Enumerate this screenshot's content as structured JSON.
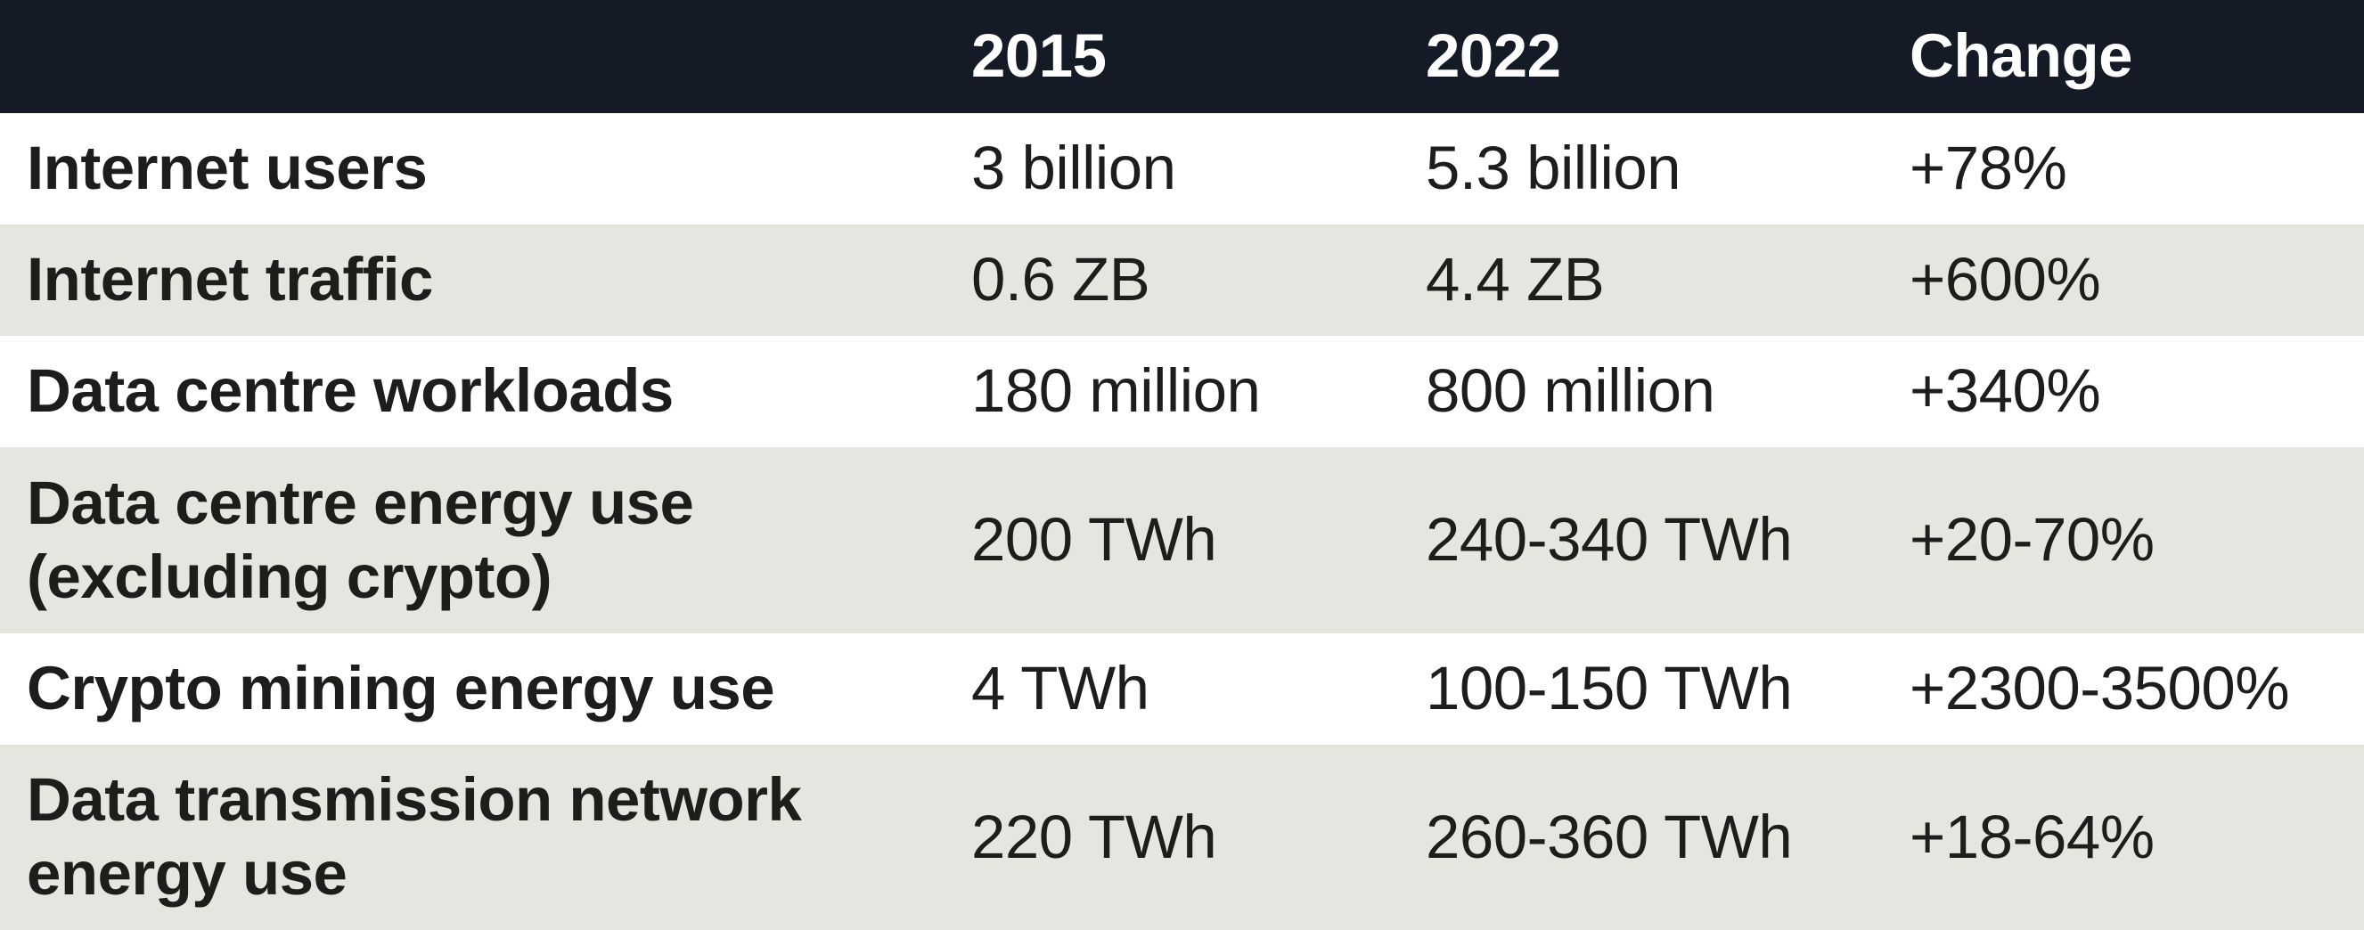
{
  "chart_data": {
    "type": "table",
    "columns": [
      "",
      "2015",
      "2022",
      "Change"
    ],
    "rows": [
      [
        "Internet users",
        "3 billion",
        "5.3 billion",
        "+78%"
      ],
      [
        "Internet traffic",
        "0.6 ZB",
        "4.4 ZB",
        "+600%"
      ],
      [
        "Data centre workloads",
        "180 million",
        "800 million",
        "+340%"
      ],
      [
        "Data centre energy use (excluding crypto)",
        "200 TWh",
        "240-340 TWh",
        "+20-70%"
      ],
      [
        "Crypto mining energy use",
        "4 TWh",
        "100-150 TWh",
        "+2300-3500%"
      ],
      [
        "Data transmission network energy use",
        "220 TWh",
        "260-360 TWh",
        "+18-64%"
      ]
    ],
    "legend_position": "none",
    "grid": false
  },
  "colors": {
    "header_bg": "#141b27",
    "header_text": "#ffffff",
    "row_bg": "#ffffff",
    "row_alt_bg": "#e6e6e1",
    "body_text": "#1d1d1b"
  }
}
